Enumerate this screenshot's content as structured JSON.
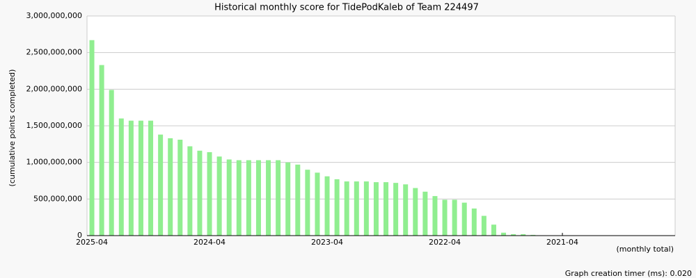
{
  "chart_data": {
    "type": "bar",
    "title": "Historical monthly score for TidePodKaleb of Team 224497",
    "y_label": "(cumulative points completed)",
    "x_label": "(monthly total)",
    "footer": "Graph creation timer (ms): 0.020",
    "color": "#90ee90",
    "grid": true,
    "categories": [
      "2025-04",
      null,
      null,
      null,
      null,
      null,
      null,
      null,
      null,
      null,
      null,
      null,
      "2024-04",
      null,
      null,
      null,
      null,
      null,
      null,
      null,
      null,
      null,
      null,
      null,
      "2023-04",
      null,
      null,
      null,
      null,
      null,
      null,
      null,
      null,
      null,
      null,
      null,
      "2022-04",
      null,
      null,
      null,
      null,
      null,
      null,
      null,
      null,
      null,
      null,
      null,
      "2021-04",
      null,
      null,
      null,
      null,
      null,
      null,
      null,
      null,
      null,
      null,
      null
    ],
    "values": [
      2670000000,
      2330000000,
      1990000000,
      1600000000,
      1570000000,
      1570000000,
      1570000000,
      1380000000,
      1330000000,
      1310000000,
      1220000000,
      1160000000,
      1140000000,
      1080000000,
      1040000000,
      1030000000,
      1030000000,
      1030000000,
      1030000000,
      1030000000,
      1000000000,
      970000000,
      900000000,
      860000000,
      810000000,
      770000000,
      740000000,
      740000000,
      740000000,
      730000000,
      730000000,
      720000000,
      700000000,
      650000000,
      600000000,
      540000000,
      490000000,
      490000000,
      450000000,
      370000000,
      270000000,
      150000000,
      40000000,
      20000000,
      20000000,
      10000000,
      0,
      0,
      0,
      0,
      0,
      0,
      0,
      0,
      0,
      0,
      0,
      0,
      0,
      0
    ],
    "ylim": [
      0,
      3000000000
    ],
    "yticks": [
      0,
      {
        "value": 500000000,
        "label": "500,000,000"
      },
      {
        "value": 1000000000,
        "label": "1,000,000,000"
      },
      {
        "value": 1500000000,
        "label": "1,500,000,000"
      },
      {
        "value": 2000000000,
        "label": "2,000,000,000"
      },
      {
        "value": 2500000000,
        "label": "2,500,000,000"
      },
      {
        "value": 3000000000,
        "label": "3,000,000,000"
      }
    ]
  }
}
